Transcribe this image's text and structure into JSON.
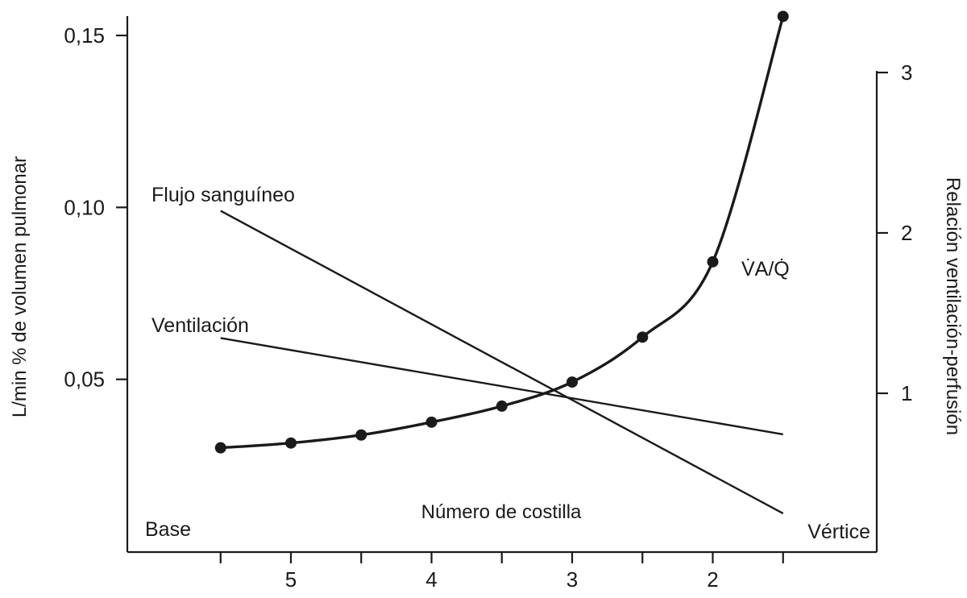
{
  "chart_data": {
    "type": "line",
    "title": "",
    "xlabel": "Número de costilla",
    "ylabel_left": "L/min % de volumen pulmonar",
    "ylabel_right": "Relación ventilación-perfusión",
    "x_end_labels": {
      "left": "Base",
      "right": "Vértice"
    },
    "xlim": [
      6.1,
      1.3
    ],
    "x_ticks": [
      5.5,
      5,
      4.5,
      4,
      3.5,
      3,
      2.5,
      2,
      1.5
    ],
    "x_tick_labels": [
      {
        "x": 5,
        "label": "5"
      },
      {
        "x": 4,
        "label": "4"
      },
      {
        "x": 3,
        "label": "3"
      },
      {
        "x": 2,
        "label": "2"
      }
    ],
    "ylim_left": [
      0,
      0.15
    ],
    "y_left_ticks": [
      {
        "v": 0.15,
        "label": "0,15"
      },
      {
        "v": 0.1,
        "label": "0,10"
      },
      {
        "v": 0.05,
        "label": "0,05"
      }
    ],
    "ylim_right": [
      0,
      3
    ],
    "y_right_ticks": [
      {
        "v": 3,
        "label": "3"
      },
      {
        "v": 2,
        "label": "2"
      },
      {
        "v": 1,
        "label": "1"
      }
    ],
    "grid": false,
    "series": [
      {
        "name": "Flujo sanguíneo",
        "axis": "left",
        "style": "line",
        "x": [
          5.5,
          1.5
        ],
        "y": [
          0.099,
          0.011
        ]
      },
      {
        "name": "Ventilación",
        "axis": "left",
        "style": "line",
        "x": [
          5.5,
          1.5
        ],
        "y": [
          0.062,
          0.034
        ]
      },
      {
        "name": "V̇A/Q̇",
        "axis": "right",
        "style": "curve-with-markers",
        "x": [
          5.5,
          5,
          4.5,
          4,
          3.5,
          3,
          2.5,
          2,
          1.5
        ],
        "y": [
          0.66,
          0.69,
          0.74,
          0.82,
          0.92,
          1.07,
          1.35,
          1.82,
          3.35
        ]
      }
    ]
  }
}
